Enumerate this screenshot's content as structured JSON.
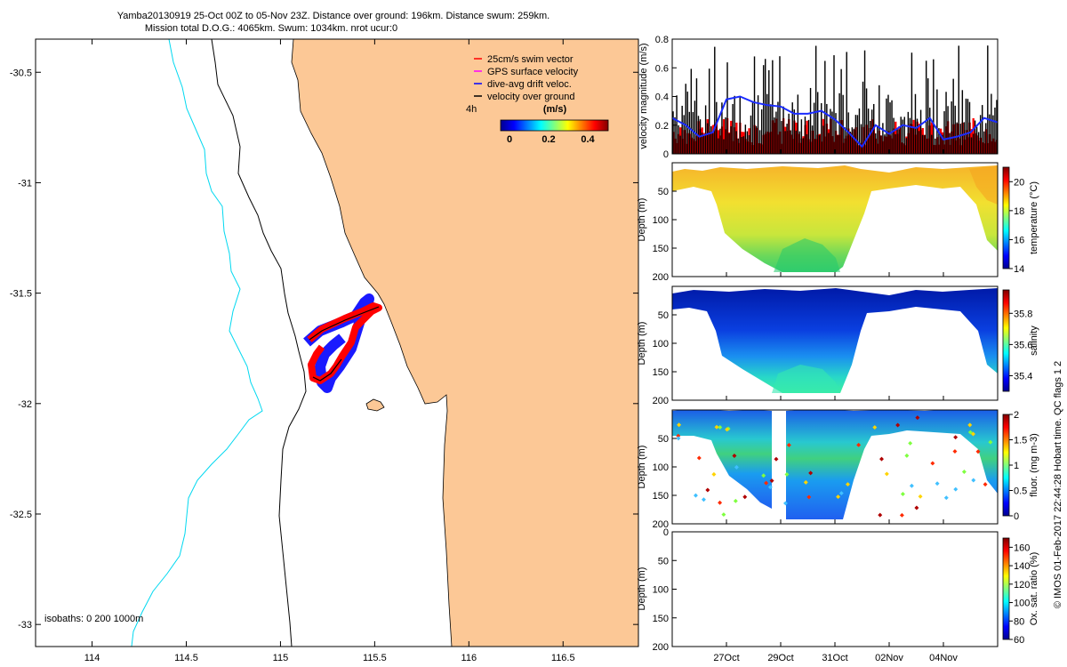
{
  "title_line1": "Yamba20130919 25-Oct 00Z to 05-Nov 23Z. Distance over ground: 196km. Distance swum: 259km.",
  "title_line2": "Mission total D.O.G.: 4065km. Swum: 1034km. nrot ucur:0",
  "side_caption": "© IMOS 01-Feb-2017 22:44:28 Hobart time. QC flags 1  2",
  "colors": {
    "land": "#fcc896",
    "isobath_0": "#000000",
    "isobath_200": "#000000",
    "isobath_1000": "#00d8f0",
    "swim_vector": "#ff0000",
    "gps_velocity": "#ff00ff",
    "drift_velocity": "#0000ff",
    "velocity_over_ground": "#000000"
  },
  "chart_data": [
    {
      "id": "map",
      "type": "scatter",
      "xlim": [
        113.7,
        116.9
      ],
      "ylim": [
        -33.1,
        -30.35
      ],
      "xticks": [
        "114",
        "114.5",
        "115",
        "115.5",
        "116",
        "116.5"
      ],
      "yticks": [
        "-30.5",
        "-31",
        "-31.5",
        "-32",
        "-32.5",
        "-33"
      ],
      "legend": {
        "entries": [
          "25cm/s swim vector",
          "GPS surface velocity",
          "dive-avg drift veloc.",
          "velocity over ground"
        ],
        "position": "top-right"
      },
      "speed_colorbar": {
        "label_left": "4h",
        "title": "(m/s)",
        "ticks": [
          "0",
          "0.2",
          "0.4"
        ],
        "range": [
          0,
          0.5
        ]
      },
      "isobaths_label": "isobaths: 0   200  1000m",
      "glider_track": {
        "lon": [
          115.12,
          115.2,
          115.28,
          115.36,
          115.42,
          115.46,
          115.48,
          115.44,
          115.38,
          115.3,
          115.22,
          115.16,
          115.12,
          115.1,
          115.14,
          115.2,
          115.28,
          115.34,
          115.38,
          115.42,
          115.46,
          115.5,
          115.52
        ],
        "lat": [
          -31.75,
          -31.72,
          -31.7,
          -31.66,
          -31.62,
          -31.58,
          -31.55,
          -31.6,
          -31.68,
          -31.76,
          -31.82,
          -31.88,
          -31.92,
          -31.93,
          -31.9,
          -31.86,
          -31.8,
          -31.74,
          -31.7,
          -31.65,
          -31.6,
          -31.57,
          -31.55
        ]
      }
    },
    {
      "id": "velocity",
      "type": "bar",
      "ylabel": "velocity magnitude (m/s)",
      "ylim": [
        0,
        0.8
      ],
      "yticks": [
        "0",
        "0.2",
        "0.4",
        "0.6",
        "0.8"
      ],
      "xlim": [
        0,
        12
      ],
      "drift_velocity_series": {
        "name": "dive-avg drift veloc.",
        "x": [
          0,
          0.5,
          1,
          1.5,
          2,
          2.5,
          3,
          3.5,
          4,
          4.5,
          5,
          5.5,
          6,
          6.5,
          7,
          7.5,
          8,
          8.5,
          9,
          9.5,
          10,
          10.5,
          11,
          11.5,
          12
        ],
        "y": [
          0.25,
          0.2,
          0.12,
          0.15,
          0.38,
          0.4,
          0.36,
          0.34,
          0.33,
          0.28,
          0.28,
          0.3,
          0.24,
          0.15,
          0.05,
          0.2,
          0.14,
          0.2,
          0.18,
          0.25,
          0.1,
          0.12,
          0.15,
          0.25,
          0.22
        ]
      }
    },
    {
      "id": "temperature",
      "type": "heatmap",
      "ylabel": "Depth (m)",
      "ylim": [
        200,
        0
      ],
      "yticks": [
        "50",
        "100",
        "150",
        "200"
      ],
      "colorbar_label": "temperature (°C)",
      "colorbar_range": [
        14,
        21
      ],
      "colorbar_ticks": [
        "14",
        "16",
        "18",
        "20"
      ]
    },
    {
      "id": "salinity",
      "type": "heatmap",
      "ylabel": "Depth (m)",
      "ylim": [
        200,
        0
      ],
      "yticks": [
        "50",
        "100",
        "150",
        "200"
      ],
      "colorbar_label": "salinity",
      "colorbar_range": [
        35.3,
        35.95
      ],
      "colorbar_ticks": [
        "35.4",
        "35.6",
        "35.8"
      ]
    },
    {
      "id": "fluorescence",
      "type": "heatmap",
      "ylabel": "Depth (m)",
      "ylim": [
        200,
        0
      ],
      "yticks": [
        "50",
        "100",
        "150",
        "200"
      ],
      "colorbar_label": "fluor. (mg m-3)",
      "colorbar_range": [
        0,
        2
      ],
      "colorbar_ticks": [
        "0",
        "0.5",
        "1",
        "1.5",
        "2"
      ]
    },
    {
      "id": "oxygen",
      "type": "heatmap",
      "ylabel": "Depth (m)",
      "ylim": [
        200,
        0
      ],
      "yticks": [
        "0",
        "50",
        "100",
        "150",
        "200"
      ],
      "colorbar_label": "Ox. sat. ratio (%)",
      "colorbar_range": [
        60,
        170
      ],
      "colorbar_ticks": [
        "60",
        "80",
        "100",
        "120",
        "140",
        "160"
      ],
      "xticks": [
        "27Oct",
        "29Oct",
        "31Oct",
        "02Nov",
        "04Nov"
      ]
    }
  ]
}
